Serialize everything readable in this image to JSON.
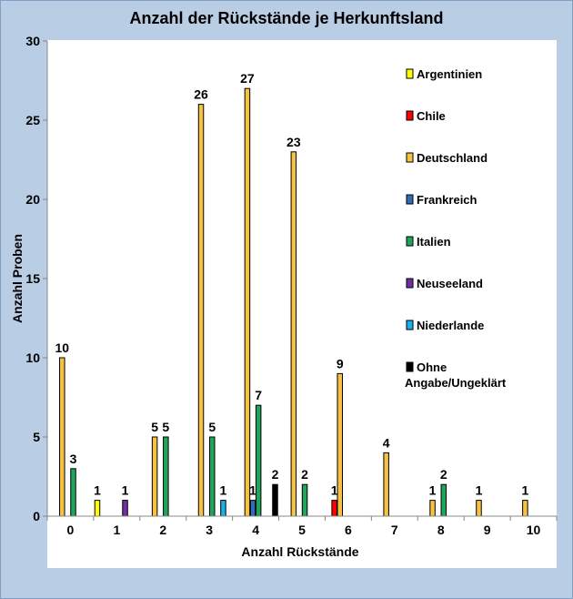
{
  "chart_data": {
    "type": "bar",
    "title": "Anzahl der Rückstände je Herkunftsland",
    "xlabel": "Anzahl Rückstände",
    "ylabel": "Anzahl Proben",
    "ylim": [
      0,
      30
    ],
    "yticks": [
      0,
      5,
      10,
      15,
      20,
      25,
      30
    ],
    "categories": [
      "0",
      "1",
      "2",
      "3",
      "4",
      "5",
      "6",
      "7",
      "8",
      "9",
      "10"
    ],
    "series": [
      {
        "name": "Argentinien",
        "color": "#ffff00",
        "values": [
          0,
          1,
          0,
          0,
          0,
          0,
          0,
          0,
          0,
          0,
          0
        ]
      },
      {
        "name": "Chile",
        "color": "#ff0000",
        "values": [
          0,
          0,
          0,
          0,
          0,
          0,
          1,
          0,
          0,
          0,
          0
        ]
      },
      {
        "name": "Deutschland",
        "color": "#f5c242",
        "values": [
          10,
          0,
          5,
          26,
          27,
          23,
          9,
          4,
          1,
          1,
          1
        ]
      },
      {
        "name": "Frankreich",
        "color": "#2f6eb5",
        "values": [
          0,
          0,
          0,
          0,
          1,
          0,
          0,
          0,
          0,
          0,
          0
        ]
      },
      {
        "name": "Italien",
        "color": "#1fa65a",
        "values": [
          3,
          0,
          5,
          5,
          7,
          2,
          0,
          0,
          2,
          0,
          0
        ]
      },
      {
        "name": "Neuseeland",
        "color": "#7030a0",
        "values": [
          0,
          1,
          0,
          0,
          0,
          0,
          0,
          0,
          0,
          0,
          0
        ]
      },
      {
        "name": "Niederlande",
        "color": "#1ab0e8",
        "values": [
          0,
          0,
          0,
          1,
          0,
          0,
          0,
          0,
          0,
          0,
          0
        ]
      },
      {
        "name": "Ohne Angabe/Ungeklärt",
        "color": "#000000",
        "values": [
          0,
          0,
          0,
          0,
          2,
          0,
          0,
          0,
          0,
          0,
          0
        ]
      }
    ]
  }
}
